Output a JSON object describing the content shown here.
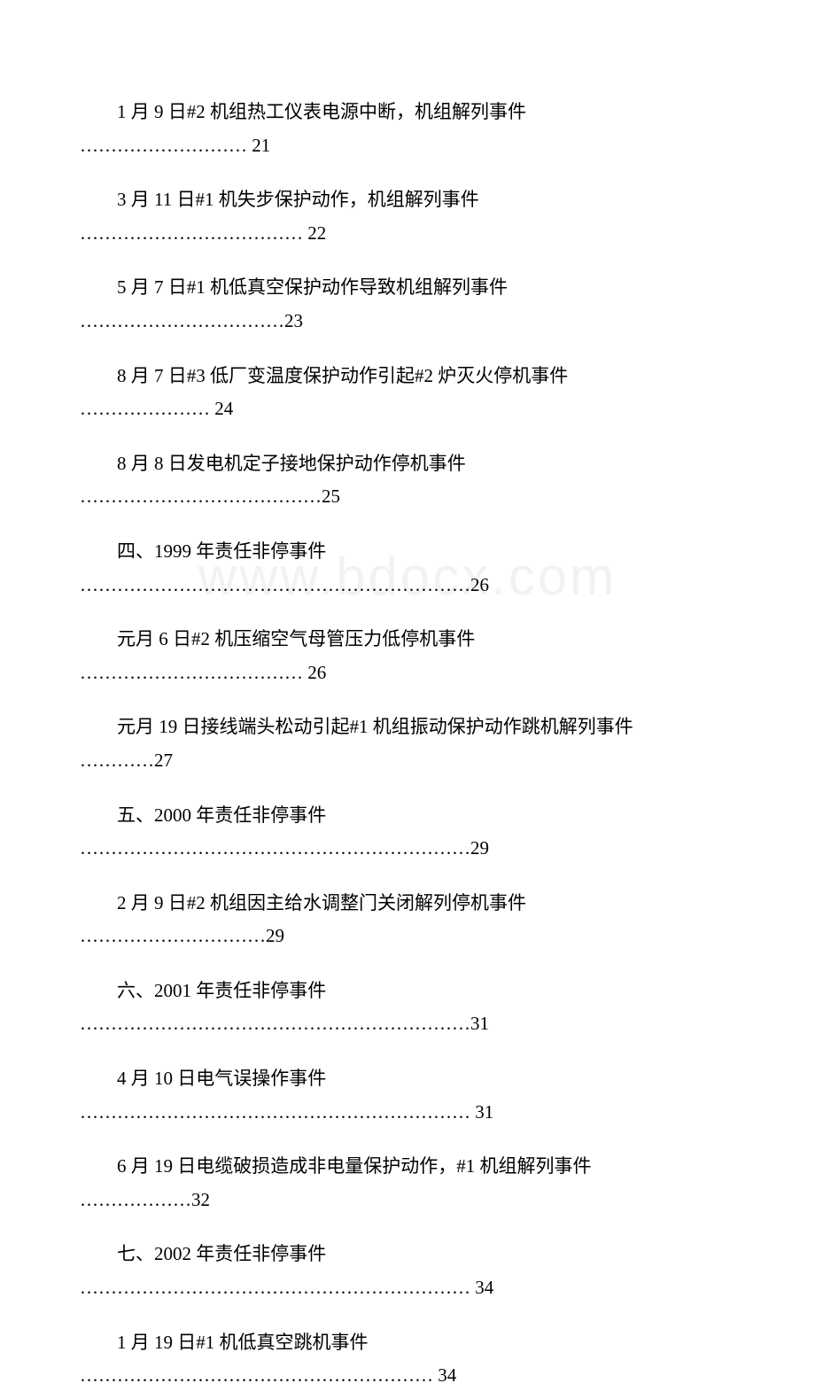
{
  "watermark": "www.bdocx.com",
  "toc_entries": [
    {
      "title": "1 月 9 日#2 机组热工仪表电源中断，机组解列事件",
      "dots": "……………………… 21"
    },
    {
      "title": "3 月 11 日#1 机失步保护动作，机组解列事件",
      "dots": "……………………………… 22"
    },
    {
      "title": "5 月 7 日#1 机低真空保护动作导致机组解列事件",
      "dots": "……………………………23"
    },
    {
      "title": "8 月 7 日#3 低厂变温度保护动作引起#2 炉灭火停机事件",
      "dots": "………………… 24"
    },
    {
      "title": "8 月 8 日发电机定子接地保护动作停机事件",
      "dots": "…………………………………25"
    },
    {
      "title": "四、1999 年责任非停事件",
      "dots": "………………………………………………………26"
    },
    {
      "title": "元月 6 日#2 机压缩空气母管压力低停机事件",
      "dots": "……………………………… 26"
    },
    {
      "title": "元月 19 日接线端头松动引起#1 机组振动保护动作跳机解列事件",
      "dots": "…………27"
    },
    {
      "title": "五、2000 年责任非停事件",
      "dots": "………………………………………………………29"
    },
    {
      "title": "2 月 9 日#2 机组因主给水调整门关闭解列停机事件",
      "dots": "…………………………29"
    },
    {
      "title": "六、2001 年责任非停事件",
      "dots": "………………………………………………………31"
    },
    {
      "title": "4 月 10 日电气误操作事件",
      "dots": "……………………………………………………… 31"
    },
    {
      "title": "6 月 19 日电缆破损造成非电量保护动作，#1 机组解列事件",
      "dots": "………………32"
    },
    {
      "title": "七、2002 年责任非停事件",
      "dots": "……………………………………………………… 34"
    },
    {
      "title": "1 月 19 日#1 机低真空跳机事件",
      "dots": "………………………………………………… 34"
    }
  ]
}
